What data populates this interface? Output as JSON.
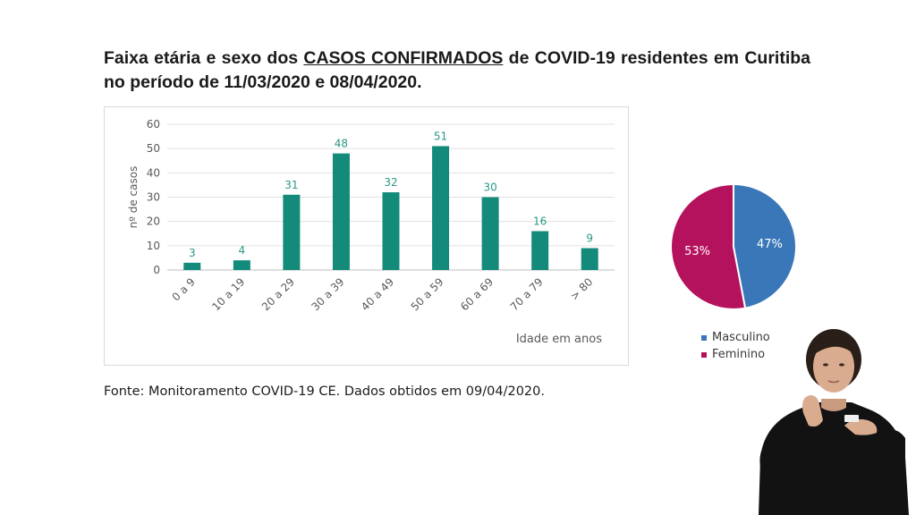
{
  "title": {
    "part1": "Faixa etária e sexo dos ",
    "highlight": "CASOS CONFIRMADOS",
    "part2": " de COVID-19 residentes em Curitiba no período de 11/03/2020 e 08/04/2020."
  },
  "source": "Fonte: Monitoramento COVID-19 CE. Dados obtidos em 09/04/2020.",
  "chart_data": [
    {
      "type": "bar",
      "categories": [
        "0 a 9",
        "10 a 19",
        "20 a 29",
        "30 a 39",
        "40 a 49",
        "50 a 59",
        "60 a 69",
        "70 a 79",
        "> 80"
      ],
      "values": [
        3,
        4,
        31,
        48,
        32,
        51,
        30,
        16,
        9
      ],
      "ylabel": "nº de casos",
      "xlabel": "Idade em anos",
      "ylim": [
        0,
        60
      ],
      "yticks": [
        0,
        10,
        20,
        30,
        40,
        50,
        60
      ],
      "grid": true,
      "color": "#138a7a",
      "label_color": "#2a9686"
    },
    {
      "type": "pie",
      "slices": [
        {
          "name": "Masculino",
          "value": 47,
          "label": "47%",
          "color": "#3a77b8"
        },
        {
          "name": "Feminino",
          "value": 53,
          "label": "53%",
          "color": "#b5125e"
        }
      ],
      "legend": "bottom"
    }
  ]
}
